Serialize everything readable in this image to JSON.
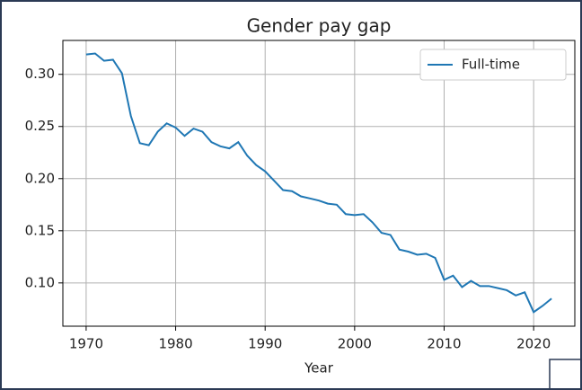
{
  "chart_data": {
    "type": "line",
    "title": "Gender pay gap",
    "xlabel": "Year",
    "x": [
      1970,
      1971,
      1972,
      1973,
      1974,
      1975,
      1976,
      1977,
      1978,
      1979,
      1980,
      1981,
      1982,
      1983,
      1984,
      1985,
      1986,
      1987,
      1988,
      1989,
      1990,
      1991,
      1992,
      1993,
      1994,
      1995,
      1996,
      1997,
      1998,
      1999,
      2000,
      2001,
      2002,
      2003,
      2004,
      2005,
      2006,
      2007,
      2008,
      2009,
      2010,
      2011,
      2012,
      2013,
      2014,
      2015,
      2016,
      2017,
      2018,
      2019,
      2020,
      2021,
      2022
    ],
    "series": [
      {
        "name": "Full-time",
        "color": "#1f77b4",
        "values": [
          0.319,
          0.32,
          0.313,
          0.314,
          0.301,
          0.26,
          0.234,
          0.232,
          0.245,
          0.253,
          0.249,
          0.241,
          0.248,
          0.245,
          0.235,
          0.231,
          0.229,
          0.235,
          0.222,
          0.213,
          0.207,
          0.198,
          0.189,
          0.188,
          0.183,
          0.181,
          0.179,
          0.176,
          0.175,
          0.166,
          0.165,
          0.166,
          0.158,
          0.148,
          0.146,
          0.132,
          0.13,
          0.127,
          0.128,
          0.124,
          0.103,
          0.107,
          0.096,
          0.102,
          0.097,
          0.097,
          0.095,
          0.093,
          0.088,
          0.091,
          0.072,
          0.078,
          0.085
        ]
      }
    ],
    "xlim": [
      1967.4,
      2024.6
    ],
    "xticks": [
      1970,
      1980,
      1990,
      2000,
      2010,
      2020
    ],
    "ylim": [
      0.0585,
      0.3325
    ],
    "yticks": [
      {
        "value": 0.1,
        "label": "0.10"
      },
      0.15,
      {
        "value": 0.2,
        "label": "0.20"
      },
      0.25,
      {
        "value": 0.3,
        "label": "0.30"
      }
    ],
    "grid": true,
    "legend": "upper right"
  }
}
